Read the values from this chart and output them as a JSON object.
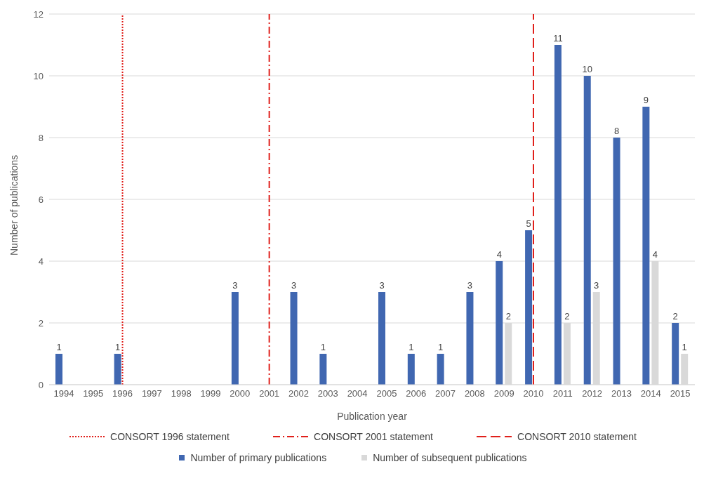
{
  "chart_data": {
    "type": "bar",
    "xlabel": "Publication year",
    "ylabel": "Number of publications",
    "categories": [
      "1994",
      "1995",
      "1996",
      "1997",
      "1998",
      "1999",
      "2000",
      "2001",
      "2002",
      "2003",
      "2004",
      "2005",
      "2006",
      "2007",
      "2008",
      "2009",
      "2010",
      "2011",
      "2012",
      "2013",
      "2014",
      "2015"
    ],
    "series": [
      {
        "name": "Number of primary publications",
        "color": "#4067b1",
        "values": [
          1,
          null,
          1,
          null,
          null,
          null,
          3,
          null,
          3,
          1,
          null,
          3,
          1,
          1,
          3,
          4,
          5,
          11,
          10,
          8,
          9,
          2
        ],
        "value_labels": [
          "1",
          null,
          "1",
          null,
          null,
          null,
          "3",
          null,
          "3",
          "1",
          null,
          "3",
          "1",
          "1",
          "3",
          "4",
          "5",
          "11",
          "10",
          "8",
          "9",
          "2"
        ]
      },
      {
        "name": "Number of subsequent publications",
        "color": "#d9d9d9",
        "values": [
          null,
          null,
          null,
          null,
          null,
          null,
          null,
          null,
          null,
          null,
          null,
          null,
          null,
          null,
          null,
          2,
          null,
          2,
          3,
          null,
          4,
          1
        ],
        "value_labels": [
          null,
          null,
          null,
          null,
          null,
          null,
          null,
          null,
          null,
          null,
          null,
          null,
          null,
          null,
          null,
          "2",
          null,
          "2",
          "3",
          null,
          "4",
          "1"
        ]
      }
    ],
    "ylim": [
      0,
      12
    ],
    "yticks": [
      0,
      2,
      4,
      6,
      8,
      10,
      12
    ],
    "grid": "y",
    "legend": "bottom",
    "ref_lines": [
      {
        "axis": "x",
        "value": "1996",
        "label": "CONSORT 1996 statement",
        "color": "#e0201b",
        "line_style": "dotted"
      },
      {
        "axis": "x",
        "value": "2001",
        "label": "CONSORT 2001 statement",
        "color": "#e0201b",
        "line_style": "dashdot"
      },
      {
        "axis": "x",
        "value": "2010",
        "label": "CONSORT 2010 statement",
        "color": "#e0201b",
        "line_style": "dashed"
      }
    ]
  }
}
